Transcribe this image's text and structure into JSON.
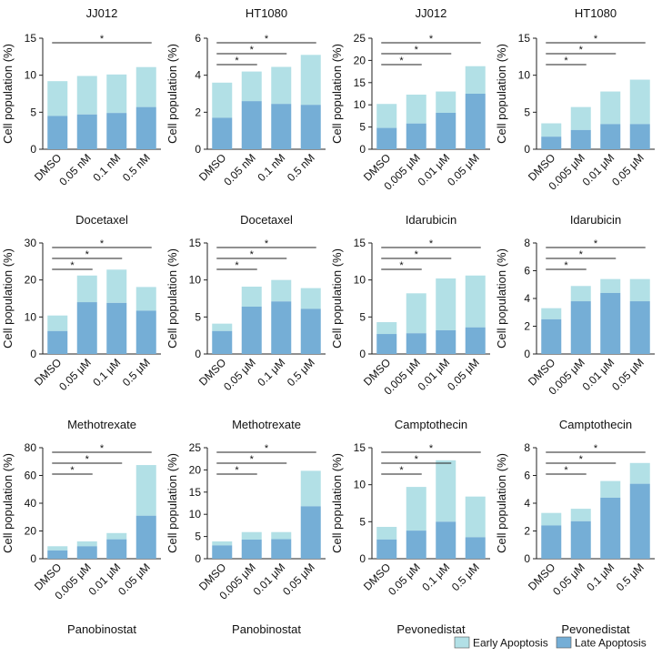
{
  "chart_data": [
    {
      "type": "bar",
      "stacked": true,
      "title": "JJ012",
      "drug": "Docetaxel",
      "ylabel": "Cell population (%)",
      "ylim": [
        0,
        15
      ],
      "yticks": [
        0,
        5,
        10,
        15
      ],
      "categories": [
        "DMSO",
        "0.05 nM",
        "0.1 nM",
        "0.5 nM"
      ],
      "series": [
        {
          "name": "Late Apoptosis",
          "values": [
            4.5,
            4.7,
            4.9,
            5.7
          ]
        },
        {
          "name": "Early Apoptosis",
          "values": [
            4.7,
            5.2,
            5.2,
            5.4
          ]
        }
      ],
      "significance": [
        {
          "from": 0,
          "to": 3,
          "label": "*"
        }
      ]
    },
    {
      "type": "bar",
      "stacked": true,
      "title": "HT1080",
      "drug": "Docetaxel",
      "ylabel": "Cell population (%)",
      "ylim": [
        0,
        6
      ],
      "yticks": [
        0,
        2,
        4,
        6
      ],
      "categories": [
        "DMSO",
        "0.05 nM",
        "0.1 nM",
        "0.5 nM"
      ],
      "series": [
        {
          "name": "Late Apoptosis",
          "values": [
            1.7,
            2.6,
            2.45,
            2.4
          ]
        },
        {
          "name": "Early Apoptosis",
          "values": [
            1.9,
            1.6,
            2.0,
            2.7
          ]
        }
      ],
      "significance": [
        {
          "from": 0,
          "to": 1,
          "label": "*"
        },
        {
          "from": 0,
          "to": 2,
          "label": "*"
        },
        {
          "from": 0,
          "to": 3,
          "label": "*"
        }
      ]
    },
    {
      "type": "bar",
      "stacked": true,
      "title": "JJ012",
      "drug": "Idarubicin",
      "ylabel": "Cell population (%)",
      "ylim": [
        0,
        25
      ],
      "yticks": [
        0,
        5,
        10,
        15,
        20,
        25
      ],
      "categories": [
        "DMSO",
        "0.005 μM",
        "0.01 μM",
        "0.05 μM"
      ],
      "series": [
        {
          "name": "Late Apoptosis",
          "values": [
            4.8,
            5.8,
            8.2,
            12.5
          ]
        },
        {
          "name": "Early Apoptosis",
          "values": [
            5.4,
            6.5,
            4.8,
            6.2
          ]
        }
      ],
      "significance": [
        {
          "from": 0,
          "to": 1,
          "label": "*"
        },
        {
          "from": 0,
          "to": 2,
          "label": "*"
        },
        {
          "from": 0,
          "to": 3,
          "label": "*"
        }
      ]
    },
    {
      "type": "bar",
      "stacked": true,
      "title": "HT1080",
      "drug": "Idarubicin",
      "ylabel": "Cell population (%)",
      "ylim": [
        0,
        15
      ],
      "yticks": [
        0,
        5,
        10,
        15
      ],
      "categories": [
        "DMSO",
        "0.005 μM",
        "0.01 μM",
        "0.05 μM"
      ],
      "series": [
        {
          "name": "Late Apoptosis",
          "values": [
            1.7,
            2.6,
            3.4,
            3.4
          ]
        },
        {
          "name": "Early Apoptosis",
          "values": [
            1.8,
            3.1,
            4.4,
            6.0
          ]
        }
      ],
      "significance": [
        {
          "from": 0,
          "to": 1,
          "label": "*"
        },
        {
          "from": 0,
          "to": 2,
          "label": "*"
        },
        {
          "from": 0,
          "to": 3,
          "label": "*"
        }
      ]
    },
    {
      "type": "bar",
      "stacked": true,
      "title": "",
      "drug": "Methotrexate",
      "ylabel": "Cell population (%)",
      "ylim": [
        0,
        30
      ],
      "yticks": [
        0,
        10,
        20,
        30
      ],
      "categories": [
        "DMSO",
        "0.05 μM",
        "0.1 μM",
        "0.5 μM"
      ],
      "series": [
        {
          "name": "Late Apoptosis",
          "values": [
            6.2,
            14.0,
            13.8,
            11.7
          ]
        },
        {
          "name": "Early Apoptosis",
          "values": [
            4.2,
            7.2,
            9.0,
            6.4
          ]
        }
      ],
      "significance": [
        {
          "from": 0,
          "to": 1,
          "label": "*"
        },
        {
          "from": 0,
          "to": 2,
          "label": "*"
        },
        {
          "from": 0,
          "to": 3,
          "label": "*"
        }
      ]
    },
    {
      "type": "bar",
      "stacked": true,
      "title": "",
      "drug": "Methotrexate",
      "ylabel": "Cell population (%)",
      "ylim": [
        0,
        15
      ],
      "yticks": [
        0,
        5,
        10,
        15
      ],
      "categories": [
        "DMSO",
        "0.05 μM",
        "0.1 μM",
        "0.5 μM"
      ],
      "series": [
        {
          "name": "Late Apoptosis",
          "values": [
            3.1,
            6.4,
            7.1,
            6.1
          ]
        },
        {
          "name": "Early Apoptosis",
          "values": [
            1.0,
            2.7,
            2.9,
            2.8
          ]
        }
      ],
      "significance": [
        {
          "from": 0,
          "to": 1,
          "label": "*"
        },
        {
          "from": 0,
          "to": 2,
          "label": "*"
        },
        {
          "from": 0,
          "to": 3,
          "label": "*"
        }
      ]
    },
    {
      "type": "bar",
      "stacked": true,
      "title": "",
      "drug": "Camptothecin",
      "ylabel": "Cell population (%)",
      "ylim": [
        0,
        15
      ],
      "yticks": [
        0,
        5,
        10,
        15
      ],
      "categories": [
        "DMSO",
        "0.005 μM",
        "0.01 μM",
        "0.05 μM"
      ],
      "series": [
        {
          "name": "Late Apoptosis",
          "values": [
            2.7,
            2.8,
            3.2,
            3.6
          ]
        },
        {
          "name": "Early Apoptosis",
          "values": [
            1.6,
            5.4,
            7.0,
            7.0
          ]
        }
      ],
      "significance": [
        {
          "from": 0,
          "to": 1,
          "label": "*"
        },
        {
          "from": 0,
          "to": 2,
          "label": "*"
        },
        {
          "from": 0,
          "to": 3,
          "label": "*"
        }
      ]
    },
    {
      "type": "bar",
      "stacked": true,
      "title": "",
      "drug": "Camptothecin",
      "ylabel": "Cell population (%)",
      "ylim": [
        0,
        8
      ],
      "yticks": [
        0,
        2,
        4,
        6,
        8
      ],
      "categories": [
        "DMSO",
        "0.005 μM",
        "0.01 μM",
        "0.05 μM"
      ],
      "series": [
        {
          "name": "Late Apoptosis",
          "values": [
            2.5,
            3.8,
            4.4,
            3.8
          ]
        },
        {
          "name": "Early Apoptosis",
          "values": [
            0.8,
            1.1,
            1.0,
            1.6
          ]
        }
      ],
      "significance": [
        {
          "from": 0,
          "to": 1,
          "label": "*"
        },
        {
          "from": 0,
          "to": 2,
          "label": "*"
        },
        {
          "from": 0,
          "to": 3,
          "label": "*"
        }
      ]
    },
    {
      "type": "bar",
      "stacked": true,
      "title": "",
      "drug": "Panobinostat",
      "ylabel": "Cell population (%)",
      "ylim": [
        0,
        80
      ],
      "yticks": [
        0,
        20,
        40,
        60,
        80
      ],
      "categories": [
        "DMSO",
        "0.005 μM",
        "0.01 μM",
        "0.05 μM"
      ],
      "series": [
        {
          "name": "Late Apoptosis",
          "values": [
            6,
            9,
            14,
            31
          ]
        },
        {
          "name": "Early Apoptosis",
          "values": [
            3,
            3.5,
            4.5,
            36.5
          ]
        }
      ],
      "significance": [
        {
          "from": 0,
          "to": 1,
          "label": "*"
        },
        {
          "from": 0,
          "to": 2,
          "label": "*"
        },
        {
          "from": 0,
          "to": 3,
          "label": "*"
        }
      ]
    },
    {
      "type": "bar",
      "stacked": true,
      "title": "",
      "drug": "Panobinostat",
      "ylabel": "Cell population (%)",
      "ylim": [
        0,
        25
      ],
      "yticks": [
        0,
        5,
        10,
        15,
        20,
        25
      ],
      "categories": [
        "DMSO",
        "0.005 μM",
        "0.01 μM",
        "0.05 μM"
      ],
      "series": [
        {
          "name": "Late Apoptosis",
          "values": [
            3.0,
            4.3,
            4.4,
            11.8
          ]
        },
        {
          "name": "Early Apoptosis",
          "values": [
            0.9,
            1.7,
            1.6,
            8.0
          ]
        }
      ],
      "significance": [
        {
          "from": 0,
          "to": 1,
          "label": "*"
        },
        {
          "from": 0,
          "to": 2,
          "label": "*"
        },
        {
          "from": 0,
          "to": 3,
          "label": "*"
        }
      ]
    },
    {
      "type": "bar",
      "stacked": true,
      "title": "",
      "drug": "Pevonedistat",
      "ylabel": "Cell population (%)",
      "ylim": [
        0,
        15
      ],
      "yticks": [
        0,
        5,
        10,
        15
      ],
      "categories": [
        "DMSO",
        "0.05 μM",
        "0.1 μM",
        "0.5 μM"
      ],
      "series": [
        {
          "name": "Late Apoptosis",
          "values": [
            2.6,
            3.8,
            5.0,
            2.9
          ]
        },
        {
          "name": "Early Apoptosis",
          "values": [
            1.7,
            5.9,
            8.3,
            5.5
          ]
        }
      ],
      "significance": [
        {
          "from": 0,
          "to": 1,
          "label": "*"
        },
        {
          "from": 0,
          "to": 2,
          "label": "*"
        },
        {
          "from": 0,
          "to": 3,
          "label": "*"
        }
      ]
    },
    {
      "type": "bar",
      "stacked": true,
      "title": "",
      "drug": "Pevonedistat",
      "ylabel": "Cell population (%)",
      "ylim": [
        0,
        8
      ],
      "yticks": [
        0,
        2,
        4,
        6,
        8
      ],
      "categories": [
        "DMSO",
        "0.05 μM",
        "0.1 μM",
        "0.5 μM"
      ],
      "series": [
        {
          "name": "Late Apoptosis",
          "values": [
            2.4,
            2.7,
            4.4,
            5.4
          ]
        },
        {
          "name": "Early Apoptosis",
          "values": [
            0.9,
            0.9,
            1.2,
            1.5
          ]
        }
      ],
      "significance": [
        {
          "from": 0,
          "to": 1,
          "label": "*"
        },
        {
          "from": 0,
          "to": 2,
          "label": "*"
        },
        {
          "from": 0,
          "to": 3,
          "label": "*"
        }
      ]
    }
  ],
  "legend": {
    "items": [
      {
        "name": "Early Apoptosis",
        "color": "#b2e0e6"
      },
      {
        "name": "Late Apoptosis",
        "color": "#75aed6"
      }
    ]
  },
  "colors": {
    "late": "#75aed6",
    "early": "#b2e0e6",
    "line": "#222222"
  }
}
